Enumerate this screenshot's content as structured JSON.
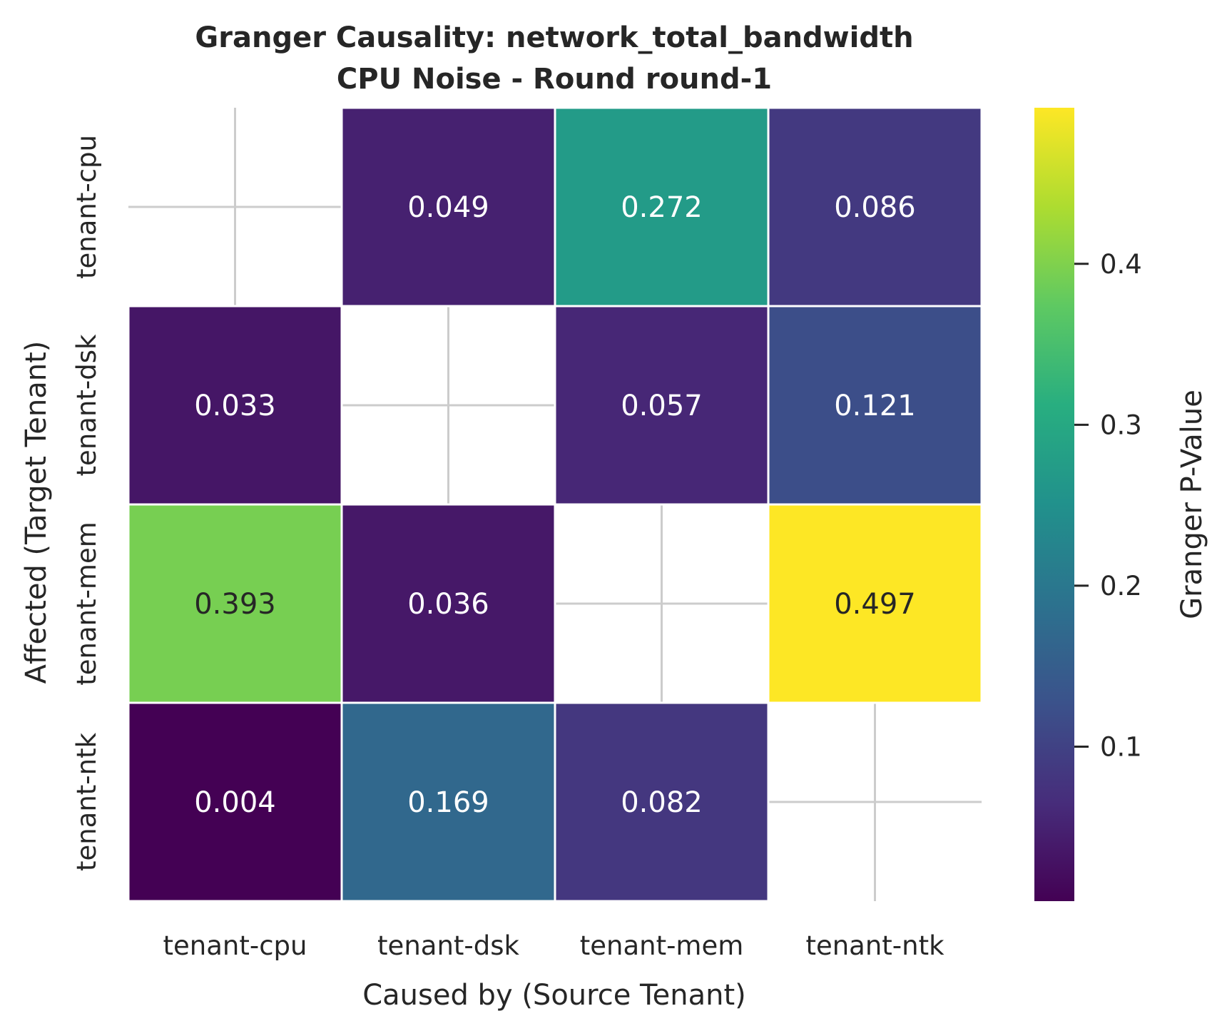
{
  "chart_data": {
    "type": "heatmap",
    "title_lines": [
      "Granger Causality: network_total_bandwidth",
      "CPU Noise - Round round-1"
    ],
    "xlabel": "Caused by (Source Tenant)",
    "ylabel": "Affected (Target Tenant)",
    "x_categories": [
      "tenant-cpu",
      "tenant-dsk",
      "tenant-mem",
      "tenant-ntk"
    ],
    "y_categories": [
      "tenant-cpu",
      "tenant-dsk",
      "tenant-mem",
      "tenant-ntk"
    ],
    "values": [
      [
        null,
        0.049,
        0.272,
        0.086
      ],
      [
        0.033,
        null,
        0.057,
        0.121
      ],
      [
        0.393,
        0.036,
        null,
        0.497
      ],
      [
        0.004,
        0.169,
        0.082,
        null
      ]
    ],
    "colormap": "viridis",
    "colorbar": {
      "label": "Granger P-Value",
      "range": [
        0.004,
        0.497
      ],
      "ticks": [
        0.1,
        0.2,
        0.3,
        0.4
      ],
      "tick_labels": [
        "0.1",
        "0.2",
        "0.3",
        "0.4"
      ]
    },
    "light_text_color": "#ffffff",
    "dark_text_color": "#262626"
  }
}
